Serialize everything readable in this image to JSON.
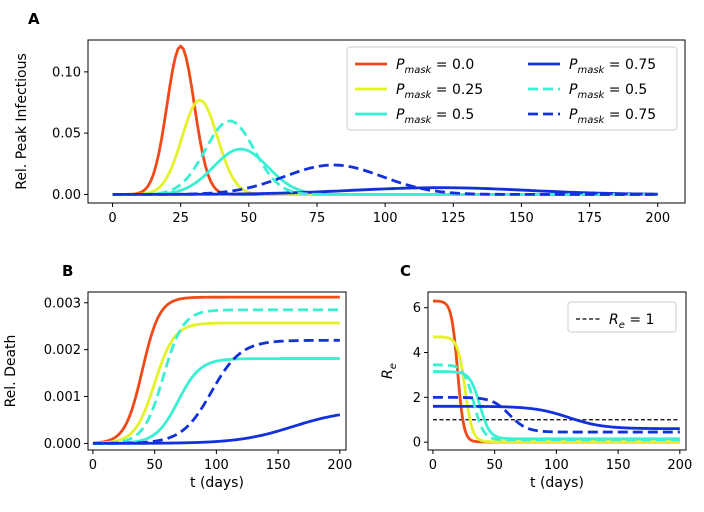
{
  "chart_data": [
    {
      "panel": "A",
      "type": "line",
      "xlabel": "",
      "ylabel": "Rel. Peak Infectious",
      "xlim": [
        -9,
        210
      ],
      "ylim": [
        -0.007,
        0.126
      ],
      "xticks": [
        0,
        25,
        50,
        75,
        100,
        125,
        150,
        175,
        200
      ],
      "yticks": [
        0.0,
        0.05,
        0.1
      ],
      "ytick_labels": [
        "0.00",
        "0.05",
        "0.10"
      ],
      "legend": "top-right",
      "legend_entries": [
        {
          "label_main": "P",
          "label_sub": "mask",
          "label_value": " = 0.0",
          "color": "#f04a19",
          "dashed": false
        },
        {
          "label_main": "P",
          "label_sub": "mask",
          "label_value": " = 0.25",
          "color": "#e3f229",
          "dashed": false
        },
        {
          "label_main": "P",
          "label_sub": "mask",
          "label_value": " = 0.5",
          "color": "#3af0d2",
          "dashed": false
        },
        {
          "label_main": "P",
          "label_sub": "mask",
          "label_value": " = 0.75",
          "color": "#1230dc",
          "dashed": false
        },
        {
          "label_main": "P",
          "label_sub": "mask",
          "label_value": " = 0.5",
          "color": "#3af0d2",
          "dashed": true
        },
        {
          "label_main": "P",
          "label_sub": "mask",
          "label_value": " = 0.75",
          "color": "#1230dc",
          "dashed": true
        }
      ],
      "series": [
        {
          "name": "P_mask=0.0",
          "color": "#f04a19",
          "dashed": false,
          "peak_x": 25,
          "peak_y": 0.121,
          "width": 5.0
        },
        {
          "name": "P_mask=0.25",
          "color": "#e3f229",
          "dashed": false,
          "peak_x": 32,
          "peak_y": 0.077,
          "width": 6.5
        },
        {
          "name": "P_mask=0.5",
          "color": "#3af0d2",
          "dashed": false,
          "peak_x": 47,
          "peak_y": 0.037,
          "width": 10
        },
        {
          "name": "P_mask=0.75",
          "color": "#1230dc",
          "dashed": false,
          "peak_x": 120,
          "peak_y": 0.0055,
          "width": 32
        },
        {
          "name": "P_mask=0.5 (dashed)",
          "color": "#3af0d2",
          "dashed": true,
          "peak_x": 43,
          "peak_y": 0.06,
          "width": 9
        },
        {
          "name": "P_mask=0.75 (dashed)",
          "color": "#1230dc",
          "dashed": true,
          "peak_x": 81,
          "peak_y": 0.024,
          "width": 18
        }
      ]
    },
    {
      "panel": "B",
      "type": "line",
      "xlabel": "t (days)",
      "ylabel": "Rel. Death",
      "xlim": [
        -4,
        205
      ],
      "ylim": [
        -0.00014,
        0.00323
      ],
      "xticks": [
        0,
        50,
        100,
        150,
        200
      ],
      "yticks": [
        0.0,
        0.001,
        0.002,
        0.003
      ],
      "ytick_labels": [
        "0.000",
        "0.001",
        "0.002",
        "0.003"
      ],
      "series": [
        {
          "name": "P_mask=0.0",
          "color": "#f04a19",
          "dashed": false,
          "final": 0.00312,
          "mid_x": 40,
          "width": 7
        },
        {
          "name": "P_mask=0.25",
          "color": "#e3f229",
          "dashed": false,
          "final": 0.00257,
          "mid_x": 50,
          "width": 8
        },
        {
          "name": "P_mask=0.5",
          "color": "#3af0d2",
          "dashed": false,
          "final": 0.00181,
          "mid_x": 69,
          "width": 9
        },
        {
          "name": "P_mask=0.75",
          "color": "#1230dc",
          "dashed": false,
          "final": 0.00072,
          "mid_x": 162,
          "width": 22
        },
        {
          "name": "P_mask=0.5 (dashed)",
          "color": "#3af0d2",
          "dashed": true,
          "final": 0.00285,
          "mid_x": 57,
          "width": 8
        },
        {
          "name": "P_mask=0.75 (dashed)",
          "color": "#1230dc",
          "dashed": true,
          "final": 0.0022,
          "mid_x": 96,
          "width": 12
        }
      ]
    },
    {
      "panel": "C",
      "type": "line",
      "xlabel": "t (days)",
      "ylabel_main": "R",
      "ylabel_sub": "e",
      "xlim": [
        -4,
        205
      ],
      "ylim": [
        -0.35,
        6.7
      ],
      "xticks": [
        0,
        50,
        100,
        150,
        200
      ],
      "yticks": [
        0,
        2,
        4,
        6
      ],
      "ytick_labels": [
        "0",
        "2",
        "4",
        "6"
      ],
      "legend": "top-right",
      "legend_entries": [
        {
          "label_main": "R",
          "label_sub": "e",
          "label_value": " = 1",
          "color": "#000000",
          "dashed": true
        }
      ],
      "reference_line": {
        "y": 1,
        "color": "#000000"
      },
      "series": [
        {
          "name": "P_mask=0.0",
          "color": "#f04a19",
          "dashed": false,
          "start": 6.3,
          "end": 0.01,
          "mid_x": 20,
          "width": 2.5
        },
        {
          "name": "P_mask=0.25",
          "color": "#e3f229",
          "dashed": false,
          "start": 4.7,
          "end": 0.02,
          "mid_x": 26,
          "width": 3
        },
        {
          "name": "P_mask=0.5",
          "color": "#3af0d2",
          "dashed": false,
          "start": 3.15,
          "end": 0.15,
          "mid_x": 38,
          "width": 4
        },
        {
          "name": "P_mask=0.75",
          "color": "#1230dc",
          "dashed": false,
          "start": 1.6,
          "end": 0.6,
          "mid_x": 110,
          "width": 14
        },
        {
          "name": "P_mask=0.5 (dashed)",
          "color": "#3af0d2",
          "dashed": true,
          "start": 3.45,
          "end": 0.1,
          "mid_x": 33,
          "width": 4
        },
        {
          "name": "P_mask=0.75 (dashed)",
          "color": "#1230dc",
          "dashed": true,
          "start": 2.0,
          "end": 0.45,
          "mid_x": 62,
          "width": 7
        }
      ]
    }
  ]
}
